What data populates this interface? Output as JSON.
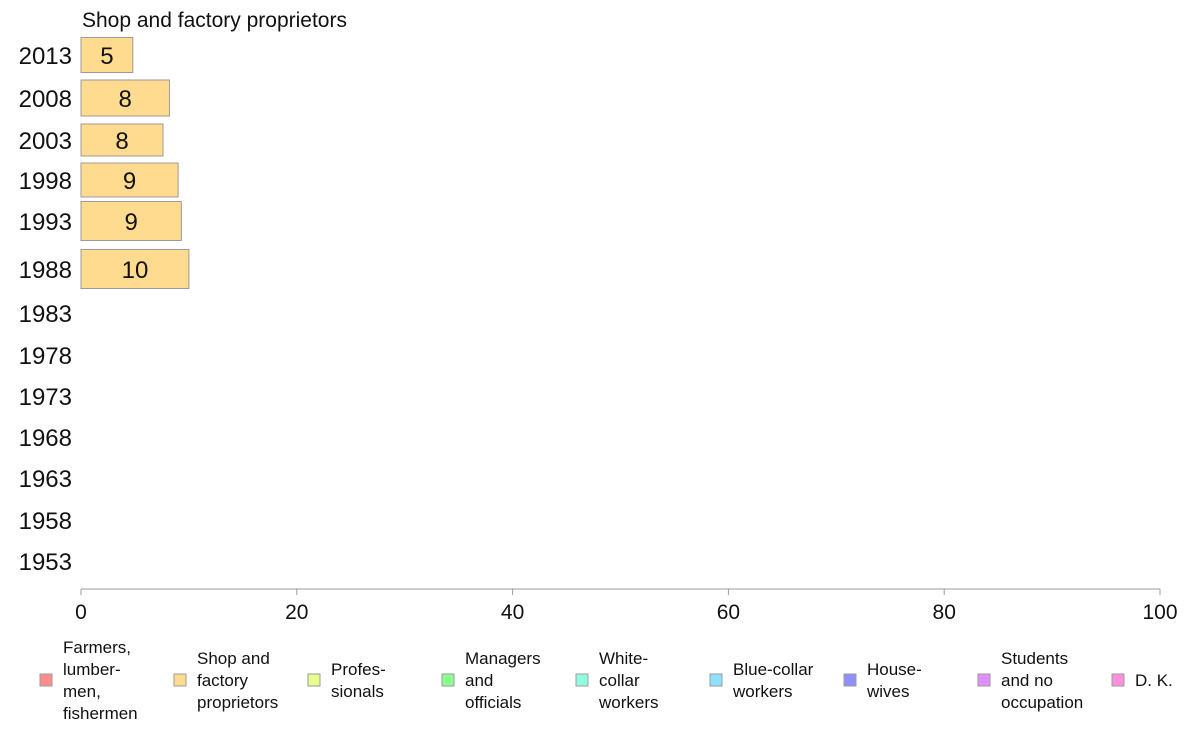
{
  "chart_data": {
    "type": "bar",
    "title": "Shop and factory proprietors",
    "categories": [
      "2013",
      "2008",
      "2003",
      "1998",
      "1993",
      "1988",
      "1983",
      "1978",
      "1973",
      "1968",
      "1963",
      "1958",
      "1953"
    ],
    "series": [
      {
        "name": "Shop and factory proprietors",
        "values": [
          4.8,
          8.2,
          7.6,
          9.0,
          9.3,
          10.0,
          null,
          null,
          null,
          null,
          null,
          null,
          null
        ],
        "labels": [
          "5",
          "8",
          "8",
          "9",
          "9",
          "10",
          "",
          "",
          "",
          "",
          "",
          "",
          ""
        ]
      }
    ],
    "xlim": [
      0,
      100
    ],
    "x_ticks": [
      "0",
      "20",
      "40",
      "60",
      "80",
      "100"
    ],
    "grid": false,
    "legend_position": "bottom",
    "bar_color": "#ffdb8f",
    "bar_border_color": "#9b9b9b",
    "axis_color": "#9b9b9b"
  },
  "legend": [
    {
      "label": "Farmers,\nlumber-\nmen,\nfishermen",
      "color": "#ff8c8c"
    },
    {
      "label": "Shop and\nfactory\nproprietors",
      "color": "#ffdb8f"
    },
    {
      "label": "Profes-\nsionals",
      "color": "#e8ff8f"
    },
    {
      "label": "Managers\nand\nofficials",
      "color": "#8cff8c"
    },
    {
      "label": "White-\ncollar\nworkers",
      "color": "#8fffe0"
    },
    {
      "label": "Blue-collar\nworkers",
      "color": "#8fdfff"
    },
    {
      "label": "House-\nwives",
      "color": "#8f8fff"
    },
    {
      "label": "Students\nand no\noccupation",
      "color": "#df8fff"
    },
    {
      "label": "D. K.",
      "color": "#ff8fdf"
    }
  ]
}
